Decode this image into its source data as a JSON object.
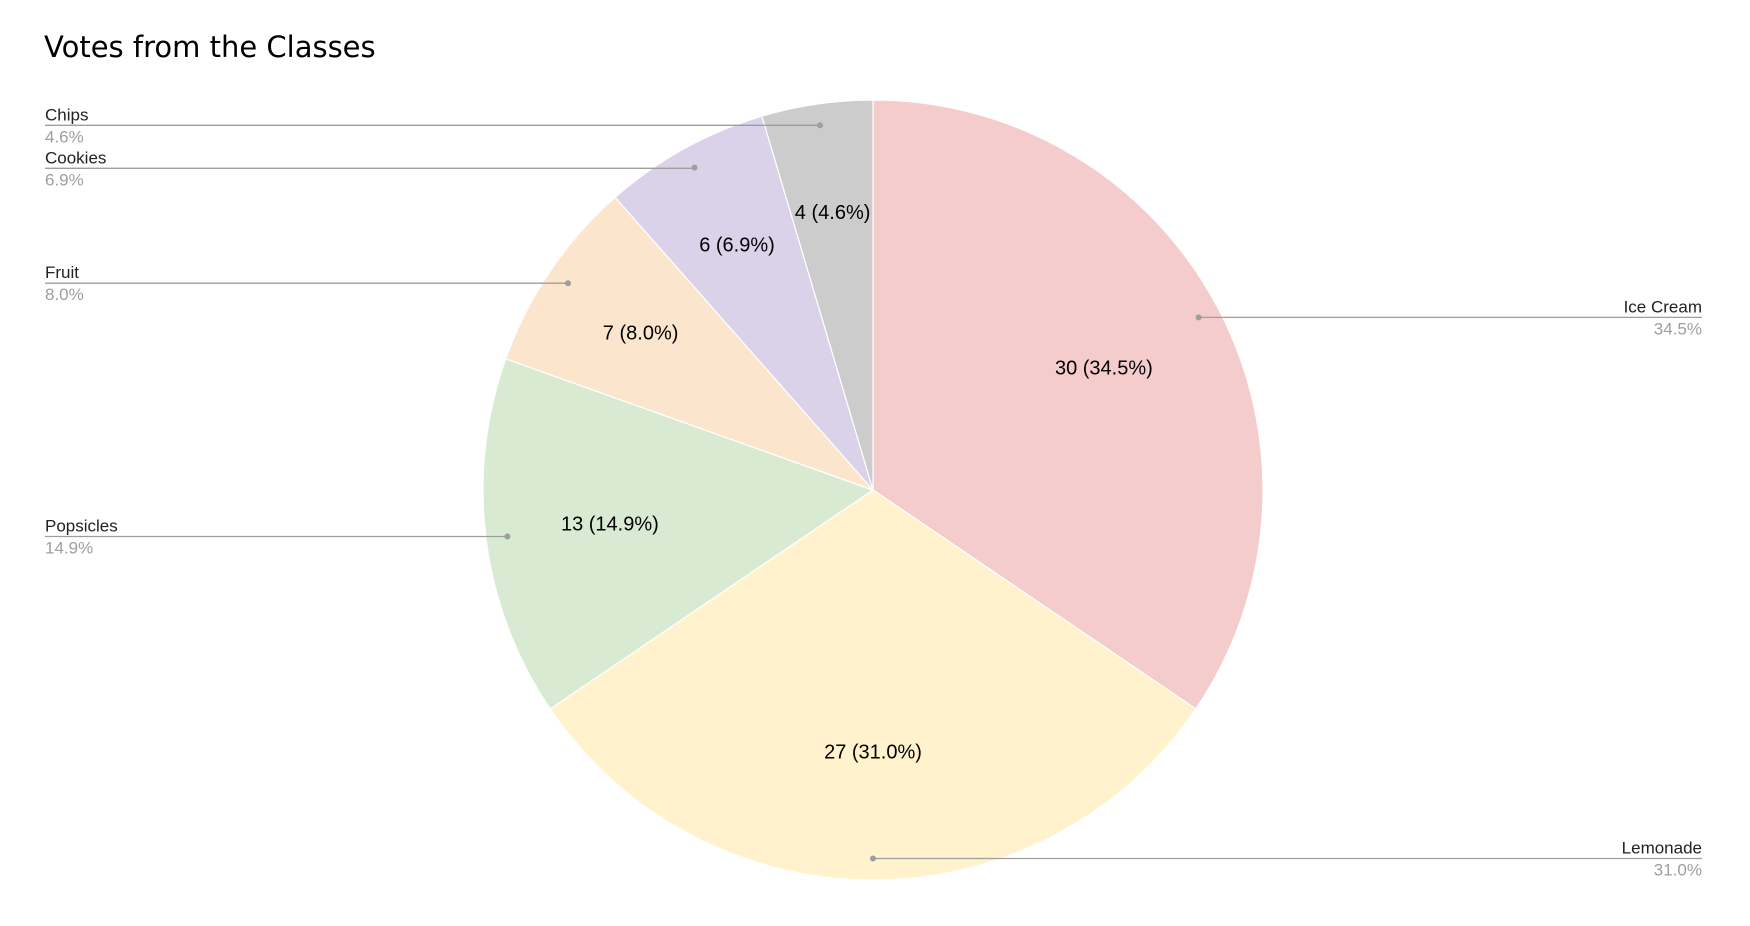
{
  "chart_data": {
    "type": "pie",
    "title": "Votes from the Classes",
    "start_angle_deg": 0,
    "direction": "clockwise",
    "slices": [
      {
        "name": "Ice Cream",
        "value": 30,
        "percent": "34.5%",
        "label": "30 (34.5%)",
        "color": "#f4cccc",
        "callout_side": "right"
      },
      {
        "name": "Lemonade",
        "value": 27,
        "percent": "31.0%",
        "label": "27 (31.0%)",
        "color": "#fff2cc",
        "callout_side": "right"
      },
      {
        "name": "Popsicles",
        "value": 13,
        "percent": "14.9%",
        "label": "13 (14.9%)",
        "color": "#d9ead3",
        "callout_side": "left"
      },
      {
        "name": "Fruit",
        "value": 7,
        "percent": "8.0%",
        "label": "7 (8.0%)",
        "color": "#fce5cd",
        "callout_side": "left"
      },
      {
        "name": "Cookies",
        "value": 6,
        "percent": "6.9%",
        "label": "6 (6.9%)",
        "color": "#d9d2e9",
        "callout_side": "left"
      },
      {
        "name": "Chips",
        "value": 4,
        "percent": "4.6%",
        "label": "4 (4.6%)",
        "color": "#cccccc",
        "callout_side": "left"
      }
    ]
  }
}
